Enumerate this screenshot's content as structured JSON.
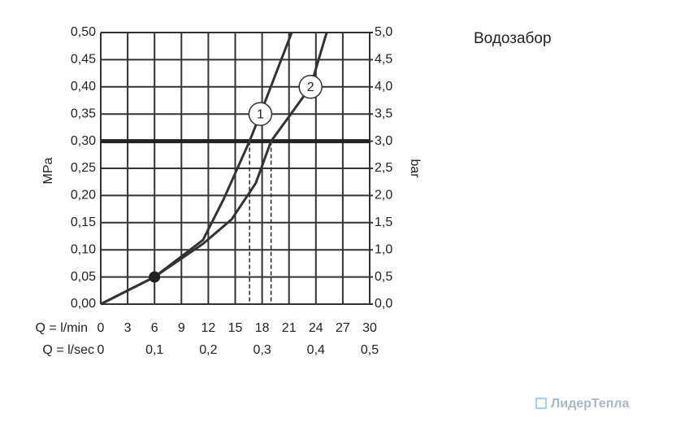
{
  "chart_data": {
    "type": "line",
    "title": "Водозабор",
    "xlabel": "Q = l/min",
    "x2label": "Q = l/sec",
    "ylabel": "MPa",
    "y2label": "bar",
    "xlim": [
      0,
      30
    ],
    "xticks": [
      0,
      3,
      6,
      9,
      12,
      15,
      18,
      21,
      24,
      27,
      30
    ],
    "x2lim": [
      0,
      0.5
    ],
    "x2ticks": [
      0,
      {
        "value": 0.1,
        "label": "0,1"
      },
      {
        "value": 0.2,
        "label": "0,2"
      },
      {
        "value": 0.3,
        "label": "0,3"
      },
      {
        "value": 0.4,
        "label": "0,4"
      },
      {
        "value": 0.5,
        "label": "0,5"
      }
    ],
    "ylim": [
      0,
      0.5
    ],
    "yticks": [
      {
        "value": 0,
        "label": "0,00"
      },
      {
        "value": 0.05,
        "label": "0,05"
      },
      {
        "value": 0.1,
        "label": "0,10"
      },
      {
        "value": 0.15,
        "label": "0,15"
      },
      {
        "value": 0.2,
        "label": "0,20"
      },
      {
        "value": 0.25,
        "label": "0,25"
      },
      {
        "value": 0.3,
        "label": "0,30"
      },
      {
        "value": 0.35,
        "label": "0,35"
      },
      {
        "value": 0.4,
        "label": "0,40"
      },
      {
        "value": 0.45,
        "label": "0,45"
      },
      {
        "value": 0.5,
        "label": "0,50"
      }
    ],
    "y2lim": [
      0,
      5
    ],
    "y2ticks": [
      {
        "value": 0,
        "label": "0,0"
      },
      {
        "value": 0.5,
        "label": "0,5"
      },
      {
        "value": 1,
        "label": "1,0"
      },
      {
        "value": 1.5,
        "label": "1,5"
      },
      {
        "value": 2,
        "label": "2,0"
      },
      {
        "value": 2.5,
        "label": "2,5"
      },
      {
        "value": 3,
        "label": "3,0"
      },
      {
        "value": 3.5,
        "label": "3,5"
      },
      {
        "value": 4,
        "label": "4,0"
      },
      {
        "value": 4.5,
        "label": "4,5"
      },
      {
        "value": 5,
        "label": "5,0"
      }
    ],
    "grid": true,
    "color": "#333333",
    "series": [
      {
        "name": "1",
        "x": [
          0,
          6,
          11.4,
          13.7,
          16.6,
          17.8,
          21.3
        ],
        "values": [
          0,
          0.05,
          0.118,
          0.193,
          0.3,
          0.35,
          0.5
        ]
      },
      {
        "name": "2",
        "x": [
          0,
          6,
          11.4,
          14.6,
          17.3,
          19.0,
          20.9,
          23.4,
          25.2
        ],
        "values": [
          0,
          0.05,
          0.111,
          0.156,
          0.223,
          0.3,
          0.343,
          0.4,
          0.5
        ]
      }
    ],
    "label_points": [
      {
        "x": 17.8,
        "y": 0.35
      },
      {
        "x": 23.4,
        "y": 0.4
      }
    ],
    "marker": {
      "x": 6,
      "y": 0.05
    },
    "hline": 0.3,
    "vlines": [
      16.6,
      19.0
    ],
    "watermark": "ЛидерТепла"
  }
}
